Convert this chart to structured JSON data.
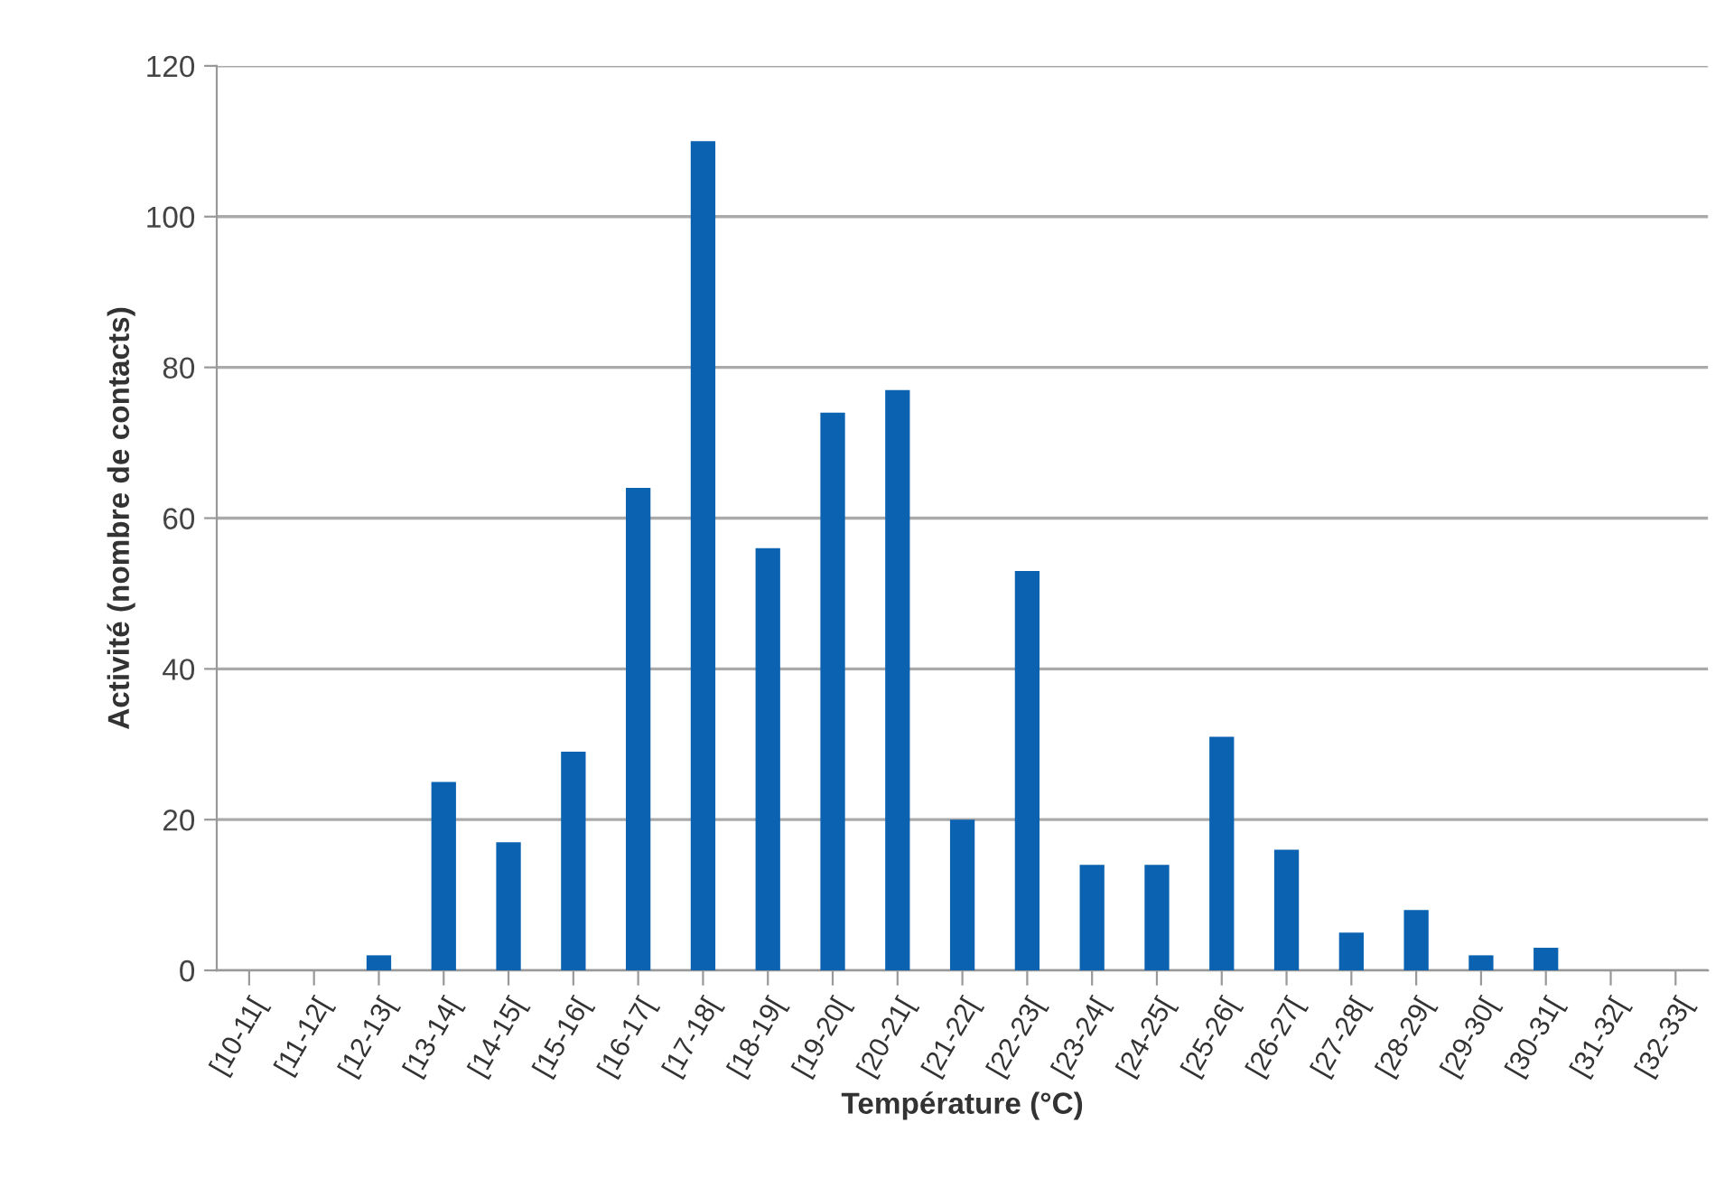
{
  "chart_data": {
    "type": "bar",
    "xlabel": "Température (°C)",
    "ylabel": "Activité (nombre de contacts)",
    "categories": [
      "[10-11[",
      "[11-12[",
      "[12-13[",
      "[13-14[",
      "[14-15[",
      "[15-16[",
      "[16-17[",
      "[17-18[",
      "[18-19[",
      "[19-20[",
      "[20-21[",
      "[21-22[",
      "[22-23[",
      "[23-24[",
      "[24-25[",
      "[25-26[",
      "[26-27[",
      "[27-28[",
      "[28-29[",
      "[29-30[",
      "[30-31[",
      "[31-32[",
      "[32-33["
    ],
    "values": [
      0,
      0,
      2,
      25,
      17,
      29,
      64,
      110,
      56,
      74,
      77,
      20,
      53,
      14,
      14,
      31,
      16,
      5,
      8,
      2,
      3,
      0,
      0
    ],
    "color": "#0a62b0",
    "ylim": [
      0,
      120
    ],
    "yticks": [
      0,
      20,
      40,
      60,
      80,
      100,
      120
    ],
    "grid": "y",
    "legend": false
  }
}
